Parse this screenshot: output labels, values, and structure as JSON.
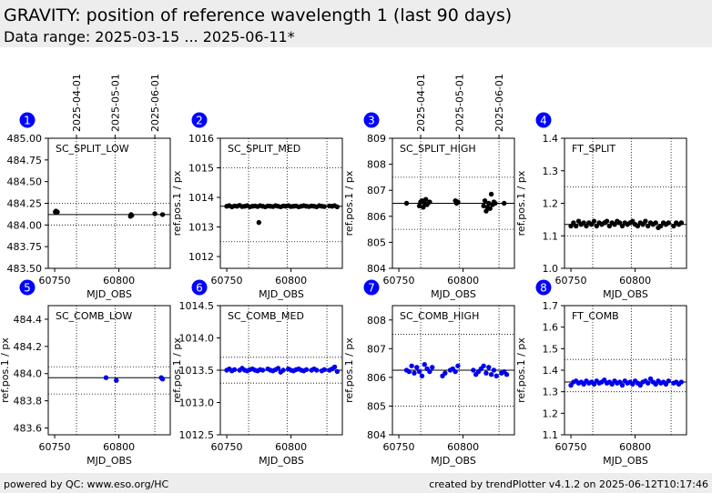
{
  "page": {
    "title": "GRAVITY: position of reference wavelength 1 (last 90 days)",
    "subtitle": "Data range: 2025-03-15 ... 2025-06-11*",
    "footer_left": "powered by QC: www.eso.org/HC",
    "footer_right": "created by trendPlotter v4.1.2 on 2025-06-12T10:17:46"
  },
  "colors": {
    "badge": "#0000ff",
    "black_series": "#000000",
    "blue_series": "#0000ee"
  },
  "chart_data": [
    {
      "number": "1",
      "type": "scatter",
      "label": "SC_SPLIT_LOW",
      "xlabel": "MJD_OBS",
      "ylabel": "",
      "xlim": [
        60745,
        60840
      ],
      "ylim": [
        483.5,
        485.0
      ],
      "xticks": [
        60750,
        60800
      ],
      "yticks": [
        483.5,
        483.75,
        484.0,
        484.25,
        484.5,
        484.75,
        485.0
      ],
      "ytick_labels": [
        "483.50",
        "483.75",
        "484.00",
        "484.25",
        "484.50",
        "484.75",
        "485.00"
      ],
      "top_dates": [
        "2025-04-01",
        "2025-05-01",
        "2025-06-01"
      ],
      "median": 484.12,
      "bands": [
        484.0,
        484.25
      ],
      "color": "black",
      "x": [
        60750.5,
        60751.0,
        60751.6,
        60752.1,
        60809.0,
        60809.5,
        60810.0,
        60828.0,
        60834.0
      ],
      "y": [
        484.15,
        484.16,
        484.15,
        484.15,
        484.1,
        484.12,
        484.11,
        484.13,
        484.12
      ]
    },
    {
      "number": "2",
      "type": "scatter",
      "label": "SC_SPLIT_MED",
      "xlabel": "MJD_OBS",
      "ylabel": "ref.pos.1 / px",
      "xlim": [
        60745,
        60840
      ],
      "ylim": [
        1011.6,
        1016
      ],
      "xticks": [
        60750,
        60800
      ],
      "yticks": [
        1012,
        1013,
        1014,
        1015,
        1016
      ],
      "ytick_labels": [
        "1012",
        "1013",
        "1014",
        "1015",
        "1016"
      ],
      "top_dates": [],
      "median": 1013.7,
      "bands": [
        1012.5,
        1015.0
      ],
      "color": "black",
      "x": [
        60750,
        60752,
        60754,
        60756,
        60758,
        60760,
        60762,
        60764,
        60766,
        60768,
        60770,
        60772,
        60774,
        60775,
        60776,
        60778,
        60780,
        60782,
        60784,
        60786,
        60788,
        60790,
        60792,
        60794,
        60796,
        60798,
        60800,
        60802,
        60804,
        60806,
        60808,
        60810,
        60812,
        60814,
        60816,
        60818,
        60820,
        60822,
        60824,
        60826,
        60830,
        60832,
        60834,
        60836
      ],
      "y": [
        1013.7,
        1013.72,
        1013.68,
        1013.71,
        1013.7,
        1013.73,
        1013.69,
        1013.7,
        1013.72,
        1013.68,
        1013.7,
        1013.71,
        1013.69,
        1013.15,
        1013.72,
        1013.7,
        1013.68,
        1013.71,
        1013.7,
        1013.69,
        1013.72,
        1013.7,
        1013.68,
        1013.71,
        1013.7,
        1013.72,
        1013.69,
        1013.7,
        1013.71,
        1013.68,
        1013.7,
        1013.72,
        1013.7,
        1013.69,
        1013.71,
        1013.7,
        1013.68,
        1013.72,
        1013.7,
        1013.69,
        1013.71,
        1013.7,
        1013.72,
        1013.68
      ]
    },
    {
      "number": "3",
      "type": "scatter",
      "label": "SC_SPLIT_HIGH",
      "xlabel": "MJD_OBS",
      "ylabel": "ref.pos.1 / px",
      "xlim": [
        60745,
        60840
      ],
      "ylim": [
        804,
        809
      ],
      "xticks": [
        60750,
        60800
      ],
      "yticks": [
        804,
        805,
        806,
        807,
        808,
        809
      ],
      "ytick_labels": [
        "804",
        "805",
        "806",
        "807",
        "808",
        "809"
      ],
      "top_dates": [
        "2025-04-01",
        "2025-05-01",
        "2025-06-01"
      ],
      "median": 806.5,
      "bands": [
        805.5,
        807.5
      ],
      "color": "black",
      "x": [
        60756,
        60766,
        60767,
        60768,
        60769,
        60770,
        60771,
        60772,
        60774,
        60794,
        60795,
        60796,
        60816,
        60817,
        60818,
        60819,
        60820,
        60821,
        60822,
        60823,
        60824,
        60825,
        60832
      ],
      "y": [
        806.5,
        806.4,
        806.55,
        806.6,
        806.35,
        806.5,
        806.65,
        806.45,
        806.55,
        806.6,
        806.5,
        806.55,
        806.4,
        806.6,
        806.2,
        806.35,
        806.5,
        806.3,
        806.85,
        806.45,
        806.55,
        806.5,
        806.5
      ]
    },
    {
      "number": "4",
      "type": "scatter",
      "label": "FT_SPLIT",
      "xlabel": "MJD_OBS",
      "ylabel": "ref.pos.1 / px",
      "xlim": [
        60745,
        60840
      ],
      "ylim": [
        1.0,
        1.4
      ],
      "xticks": [
        60750,
        60800
      ],
      "yticks": [
        1.0,
        1.1,
        1.2,
        1.3,
        1.4
      ],
      "ytick_labels": [
        "1.0",
        "1.1",
        "1.2",
        "1.3",
        "1.4"
      ],
      "top_dates": [],
      "median": 1.135,
      "bands": [
        1.1,
        1.25
      ],
      "color": "black",
      "x": [
        60750,
        60752,
        60754,
        60756,
        60758,
        60760,
        60762,
        60764,
        60766,
        60768,
        60770,
        60772,
        60774,
        60776,
        60778,
        60780,
        60782,
        60784,
        60786,
        60788,
        60790,
        60792,
        60794,
        60796,
        60798,
        60800,
        60802,
        60804,
        60806,
        60808,
        60810,
        60812,
        60814,
        60816,
        60818,
        60820,
        60822,
        60824,
        60826,
        60830,
        60832,
        60834,
        60836
      ],
      "y": [
        1.13,
        1.14,
        1.13,
        1.145,
        1.135,
        1.14,
        1.13,
        1.14,
        1.135,
        1.145,
        1.13,
        1.14,
        1.135,
        1.14,
        1.145,
        1.13,
        1.14,
        1.135,
        1.145,
        1.14,
        1.13,
        1.14,
        1.135,
        1.14,
        1.145,
        1.135,
        1.13,
        1.14,
        1.135,
        1.145,
        1.13,
        1.14,
        1.135,
        1.14,
        1.125,
        1.13,
        1.14,
        1.135,
        1.14,
        1.13,
        1.14,
        1.135,
        1.14
      ]
    },
    {
      "number": "5",
      "type": "scatter",
      "label": "SC_COMB_LOW",
      "xlabel": "MJD_OBS",
      "ylabel": "ref.pos.1 / px",
      "xlim": [
        60745,
        60840
      ],
      "ylim": [
        483.55,
        484.5
      ],
      "xticks": [
        60750,
        60800
      ],
      "yticks": [
        483.6,
        483.8,
        484.0,
        484.2,
        484.4
      ],
      "ytick_labels": [
        "483.6",
        "483.8",
        "484.0",
        "484.2",
        "484.4"
      ],
      "top_dates": [],
      "median": 483.97,
      "bands": [
        483.85,
        484.05
      ],
      "color": "blue",
      "x": [
        60790,
        60798,
        60833,
        60834
      ],
      "y": [
        483.97,
        483.95,
        483.97,
        483.96
      ]
    },
    {
      "number": "6",
      "type": "scatter",
      "label": "SC_COMB_MED",
      "xlabel": "MJD_OBS",
      "ylabel": "ref.pos.1 / px",
      "xlim": [
        60745,
        60840
      ],
      "ylim": [
        1012.5,
        1014.5
      ],
      "xticks": [
        60750,
        60800
      ],
      "yticks": [
        1012.5,
        1013.0,
        1013.5,
        1014.0,
        1014.5
      ],
      "ytick_labels": [
        "1012.5",
        "1013.0",
        "1013.5",
        "1014.0",
        "1014.5"
      ],
      "top_dates": [],
      "median": 1013.5,
      "bands": [
        1013.3,
        1013.7
      ],
      "color": "blue",
      "x": [
        60750,
        60752,
        60754,
        60756,
        60760,
        60762,
        60764,
        60766,
        60768,
        60770,
        60772,
        60774,
        60776,
        60778,
        60782,
        60784,
        60786,
        60788,
        60790,
        60792,
        60794,
        60798,
        60800,
        60802,
        60804,
        60806,
        60808,
        60810,
        60812,
        60816,
        60818,
        60820,
        60824,
        60826,
        60830,
        60832,
        60834,
        60836
      ],
      "y": [
        1013.5,
        1013.52,
        1013.49,
        1013.51,
        1013.5,
        1013.53,
        1013.5,
        1013.49,
        1013.51,
        1013.52,
        1013.5,
        1013.49,
        1013.51,
        1013.5,
        1013.52,
        1013.5,
        1013.49,
        1013.51,
        1013.53,
        1013.47,
        1013.5,
        1013.52,
        1013.5,
        1013.49,
        1013.51,
        1013.52,
        1013.5,
        1013.49,
        1013.51,
        1013.5,
        1013.52,
        1013.5,
        1013.49,
        1013.51,
        1013.5,
        1013.52,
        1013.55,
        1013.48
      ]
    },
    {
      "number": "7",
      "type": "scatter",
      "label": "SC_COMB_HIGH",
      "xlabel": "MJD_OBS",
      "ylabel": "ref.pos.1 / px",
      "xlim": [
        60745,
        60840
      ],
      "ylim": [
        804,
        808.5
      ],
      "xticks": [
        60750,
        60800
      ],
      "yticks": [
        804,
        805,
        806,
        807,
        808
      ],
      "ytick_labels": [
        "804",
        "805",
        "806",
        "807",
        "808"
      ],
      "top_dates": [],
      "median": 806.25,
      "bands": [
        805.0,
        807.5
      ],
      "color": "blue",
      "x": [
        60756,
        60758,
        60760,
        60762,
        60764,
        60766,
        60768,
        60770,
        60772,
        60774,
        60776,
        60784,
        60786,
        60790,
        60792,
        60794,
        60796,
        60808,
        60810,
        60812,
        60814,
        60816,
        60818,
        60820,
        60822,
        60824,
        60826,
        60830,
        60832,
        60834
      ],
      "y": [
        806.25,
        806.2,
        806.4,
        806.15,
        806.35,
        806.2,
        806.05,
        806.45,
        806.3,
        806.2,
        806.35,
        806.05,
        806.15,
        806.25,
        806.3,
        806.2,
        806.4,
        806.25,
        806.1,
        806.2,
        806.3,
        806.4,
        806.15,
        806.35,
        806.1,
        806.25,
        806.05,
        806.15,
        806.2,
        806.1
      ]
    },
    {
      "number": "8",
      "type": "scatter",
      "label": "FT_COMB",
      "xlabel": "MJD_OBS",
      "ylabel": "ref.pos.1 / px",
      "xlim": [
        60745,
        60840
      ],
      "ylim": [
        1.1,
        1.7
      ],
      "xticks": [
        60750,
        60800
      ],
      "yticks": [
        1.1,
        1.2,
        1.3,
        1.4,
        1.5,
        1.6,
        1.7
      ],
      "ytick_labels": [
        "1.1",
        "1.2",
        "1.3",
        "1.4",
        "1.5",
        "1.6",
        "1.7"
      ],
      "top_dates": [],
      "median": 1.345,
      "bands": [
        1.3,
        1.45
      ],
      "color": "blue",
      "x": [
        60750,
        60752,
        60754,
        60756,
        60758,
        60760,
        60762,
        60764,
        60766,
        60768,
        60770,
        60772,
        60774,
        60776,
        60778,
        60780,
        60782,
        60784,
        60786,
        60788,
        60790,
        60792,
        60794,
        60796,
        60798,
        60800,
        60802,
        60804,
        60806,
        60808,
        60810,
        60812,
        60814,
        60816,
        60818,
        60820,
        60822,
        60824,
        60826,
        60830,
        60832,
        60834,
        60836
      ],
      "y": [
        1.33,
        1.345,
        1.35,
        1.34,
        1.345,
        1.335,
        1.35,
        1.34,
        1.345,
        1.335,
        1.35,
        1.34,
        1.345,
        1.355,
        1.34,
        1.345,
        1.335,
        1.35,
        1.34,
        1.345,
        1.33,
        1.35,
        1.34,
        1.345,
        1.335,
        1.35,
        1.34,
        1.33,
        1.345,
        1.35,
        1.34,
        1.36,
        1.345,
        1.335,
        1.35,
        1.34,
        1.345,
        1.335,
        1.35,
        1.34,
        1.345,
        1.335,
        1.345
      ]
    }
  ]
}
